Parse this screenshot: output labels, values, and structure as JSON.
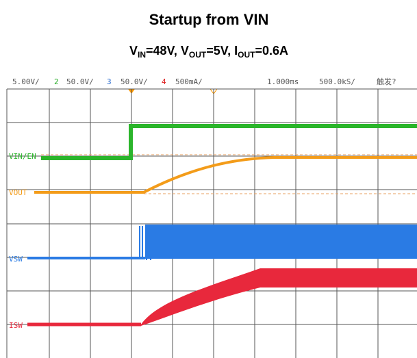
{
  "title": "Startup from VIN",
  "subtitle": [
    "V",
    "IN",
    "=48V, V",
    "OUT",
    "=5V, I",
    "OUT",
    "=0.6A"
  ],
  "header": [
    "5.00V/",
    "2",
    "50.0V/",
    "3",
    "50.0V/",
    "4",
    "500mA/",
    "1.000ms",
    "500.0kS/",
    "触发?"
  ],
  "traces": [
    "VIN/EN",
    "VOUT",
    "VSW",
    "ISW"
  ]
}
